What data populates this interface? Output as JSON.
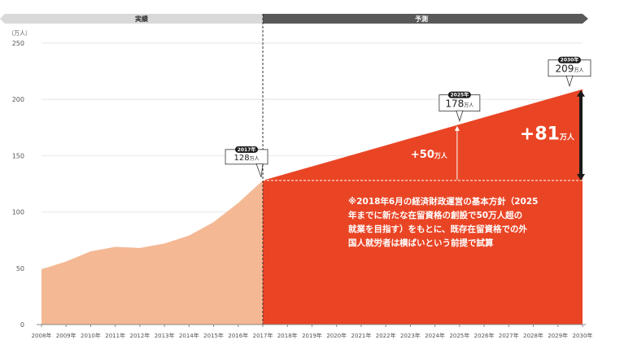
{
  "chart_data": {
    "type": "area",
    "unit_label": "（万人）",
    "yticks": [
      0,
      50,
      100,
      150,
      200,
      250
    ],
    "ylim": [
      0,
      250
    ],
    "categories": [
      "2008年",
      "2009年",
      "2010年",
      "2011年",
      "2012年",
      "2013年",
      "2014年",
      "2015年",
      "2016年",
      "2017年",
      "2018年",
      "2019年",
      "2020年",
      "2021年",
      "2022年",
      "2023年",
      "2024年",
      "2025年",
      "2026年",
      "2027年",
      "2028年",
      "2029年",
      "2030年"
    ],
    "actual": {
      "label": "実績",
      "x": [
        2008,
        2009,
        2010,
        2011,
        2012,
        2013,
        2014,
        2015,
        2016,
        2017
      ],
      "values": [
        49,
        56,
        65,
        69,
        68,
        72,
        79,
        91,
        108,
        128
      ]
    },
    "forecast": {
      "label": "予測",
      "x": [
        2017,
        2030
      ],
      "values": [
        128,
        209
      ],
      "baseline": 128
    },
    "callouts": [
      {
        "badge": "2017年",
        "value": "128",
        "unit": "万人"
      },
      {
        "badge": "2025年",
        "value": "178",
        "unit": "万人"
      },
      {
        "badge": "2030年",
        "value": "209",
        "unit": "万人"
      }
    ],
    "deltas": [
      {
        "value": "+50",
        "unit": "万人",
        "at": 2025
      },
      {
        "value": "+81",
        "unit": "万人",
        "at": 2030
      }
    ],
    "note": "※2018年6月の経済財政運営の基本方針（2025\n年までに新たな在留資格の創設で50万人超の\n就業を目指す）をもとに、既存在留資格での外\n国人就労者は横ばいという前提で試算",
    "colors": {
      "actual_fill": "#f5b894",
      "forecast_fill": "#e94525",
      "actual_band": "#d9d9d9",
      "forecast_band": "#595959",
      "axis": "#888888",
      "grid": "#e6e6e6"
    }
  }
}
